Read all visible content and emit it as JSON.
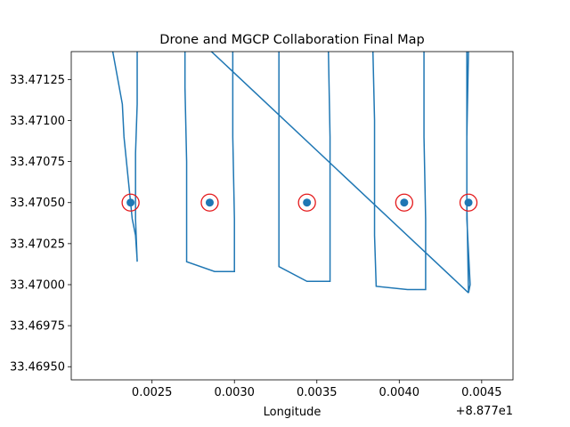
{
  "chart_data": {
    "type": "line",
    "title": "Drone and MGCP Collaboration Final Map",
    "xlabel": "Longitude",
    "ylabel": "",
    "x_offset_label": "+8.877e1",
    "xlim": [
      0.00201,
      0.00469
    ],
    "ylim": [
      33.46942,
      33.47142
    ],
    "x_ticks": [
      {
        "value": 0.0025,
        "label": "0.0025"
      },
      {
        "value": 0.003,
        "label": "0.0030"
      },
      {
        "value": 0.0035,
        "label": "0.0035"
      },
      {
        "value": 0.004,
        "label": "0.0040"
      },
      {
        "value": 0.0045,
        "label": "0.0045"
      }
    ],
    "y_ticks": [
      {
        "value": 33.4695,
        "label": "33.46950"
      },
      {
        "value": 33.46975,
        "label": "33.46975"
      },
      {
        "value": 33.47,
        "label": "33.47000"
      },
      {
        "value": 33.47025,
        "label": "33.47025"
      },
      {
        "value": 33.4705,
        "label": "33.47050"
      },
      {
        "value": 33.47075,
        "label": "33.47075"
      },
      {
        "value": 33.471,
        "label": "33.47100"
      },
      {
        "value": 33.47125,
        "label": "33.47125"
      }
    ],
    "grid": false,
    "colors": {
      "path": "#1f77b4",
      "points": "#1f77b4",
      "circles": "#e41a1c"
    },
    "series": [
      {
        "kind": "path",
        "x": [
          0.00226,
          0.00232,
          0.00233,
          0.00236,
          0.00238,
          0.0024,
          0.00241,
          0.00241,
          0.0024,
          0.0024,
          0.00241,
          0.00241
        ],
        "y": [
          33.47143,
          33.4711,
          33.4709,
          33.4706,
          33.4704,
          33.4703,
          33.47015,
          33.47014,
          33.4704,
          33.4708,
          33.4711,
          33.47143
        ]
      },
      {
        "kind": "path",
        "x": [
          0.0027,
          0.0027,
          0.00271,
          0.00271,
          0.00271,
          0.00288,
          0.003,
          0.003,
          0.00299,
          0.00299
        ],
        "y": [
          33.47143,
          33.4712,
          33.47075,
          33.4703,
          33.47014,
          33.47008,
          33.47008,
          33.4704,
          33.4709,
          33.47143
        ]
      },
      {
        "kind": "path",
        "x": [
          0.00327,
          0.00327,
          0.00327,
          0.00327,
          0.00344,
          0.00358,
          0.00358,
          0.00358,
          0.00357
        ],
        "y": [
          33.47143,
          33.471,
          33.4704,
          33.47011,
          33.47002,
          33.47002,
          33.4704,
          33.4709,
          33.47143
        ]
      },
      {
        "kind": "path",
        "x": [
          0.00384,
          0.00385,
          0.00385,
          0.00386,
          0.00405,
          0.00416,
          0.00416,
          0.00415,
          0.00415
        ],
        "y": [
          33.47143,
          33.471,
          33.4703,
          33.46999,
          33.46997,
          33.46997,
          33.4704,
          33.4709,
          33.47143
        ]
      },
      {
        "kind": "path",
        "x": [
          0.00442,
          0.00441,
          0.00441,
          0.00443,
          0.00442,
          0.00441,
          0.00441
        ],
        "y": [
          33.47143,
          33.4709,
          33.4704,
          33.47,
          33.46995,
          33.4705,
          33.47143
        ]
      },
      {
        "kind": "path",
        "x": [
          0.00285,
          0.00442
        ],
        "y": [
          33.47143,
          33.46995
        ]
      },
      {
        "kind": "points",
        "x": [
          0.00237,
          0.00285,
          0.00344,
          0.00403,
          0.00442
        ],
        "y": [
          33.4705,
          33.4705,
          33.4705,
          33.4705,
          33.4705
        ]
      },
      {
        "kind": "circles",
        "x": [
          0.00237,
          0.00285,
          0.00344,
          0.00403,
          0.00442
        ],
        "y": [
          33.4705,
          33.4705,
          33.4705,
          33.4705,
          33.4705
        ]
      }
    ]
  }
}
